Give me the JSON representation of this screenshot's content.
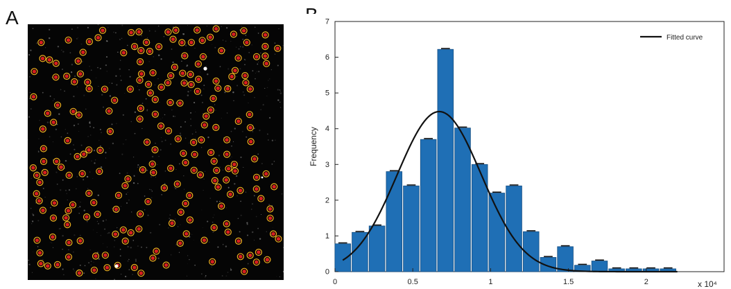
{
  "panels": {
    "a_label": "A",
    "b_label": "B"
  },
  "image_panel": {
    "background_color": "#050505",
    "marker_fill": "#d81e1e",
    "marker_ring": "#f2b01e"
  },
  "chart_data": {
    "type": "bar",
    "title": "",
    "xlabel": "",
    "ylabel": "Frequency",
    "x_multiplier": "x 10⁴",
    "xlim": [
      0,
      2.5
    ],
    "ylim": [
      0,
      7
    ],
    "x_ticks": [
      0,
      0.5,
      1,
      1.5,
      2
    ],
    "y_ticks": [
      0,
      1,
      2,
      3,
      4,
      5,
      6,
      7
    ],
    "bin_width": 0.11,
    "x": [
      0.05,
      0.16,
      0.27,
      0.38,
      0.49,
      0.6,
      0.71,
      0.82,
      0.93,
      1.04,
      1.15,
      1.26,
      1.37,
      1.48,
      1.59,
      1.7,
      1.81,
      1.92,
      2.03,
      2.14
    ],
    "values": [
      0.78,
      1.1,
      1.28,
      2.8,
      2.4,
      3.7,
      6.22,
      4.02,
      3.0,
      2.2,
      2.4,
      1.12,
      0.4,
      0.7,
      0.18,
      0.3,
      0.08,
      0.08,
      0.08,
      0.08
    ],
    "bar_color": "#1f6fb5",
    "series": [
      {
        "name": "Fitted curve",
        "type": "line",
        "color": "#111111",
        "mean": 0.67,
        "sd": 0.27,
        "peak": 4.48,
        "x_start": 0.05,
        "x_end": 2.2
      }
    ],
    "legend": {
      "position": "top-right",
      "entries": [
        "Fitted curve"
      ]
    },
    "grid": false
  }
}
